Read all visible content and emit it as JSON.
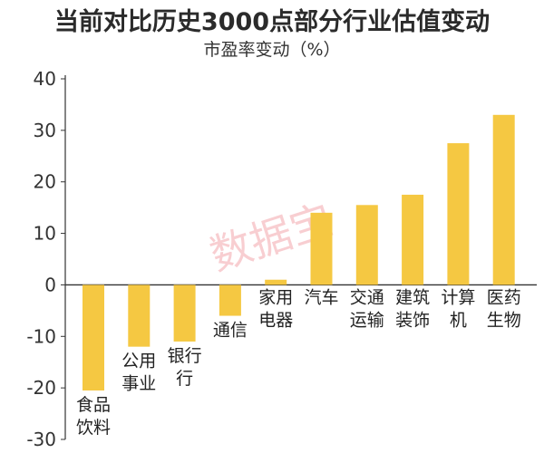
{
  "chart_data": {
    "type": "bar",
    "title": "当前对比历史3000点部分行业估值变动",
    "subtitle": "市盈率变动（%）",
    "watermark": "数据宝",
    "ylim": [
      -30,
      40
    ],
    "yticks": [
      40,
      30,
      20,
      10,
      0,
      -10,
      -20,
      -30
    ],
    "grid": false,
    "bar_color": "#f5c842",
    "categories": [
      [
        "食品",
        "饮料"
      ],
      [
        "公用",
        "事业"
      ],
      [
        "银行",
        "行"
      ],
      [
        "通信"
      ],
      [
        "家用",
        "电器"
      ],
      [
        "汽车"
      ],
      [
        "交通",
        "运输"
      ],
      [
        "建筑",
        "装饰"
      ],
      [
        "计算",
        "机"
      ],
      [
        "医药",
        "生物"
      ]
    ],
    "values": [
      -20.5,
      -12,
      -11,
      -6,
      1,
      14,
      15.5,
      17.5,
      27.5,
      33
    ]
  }
}
